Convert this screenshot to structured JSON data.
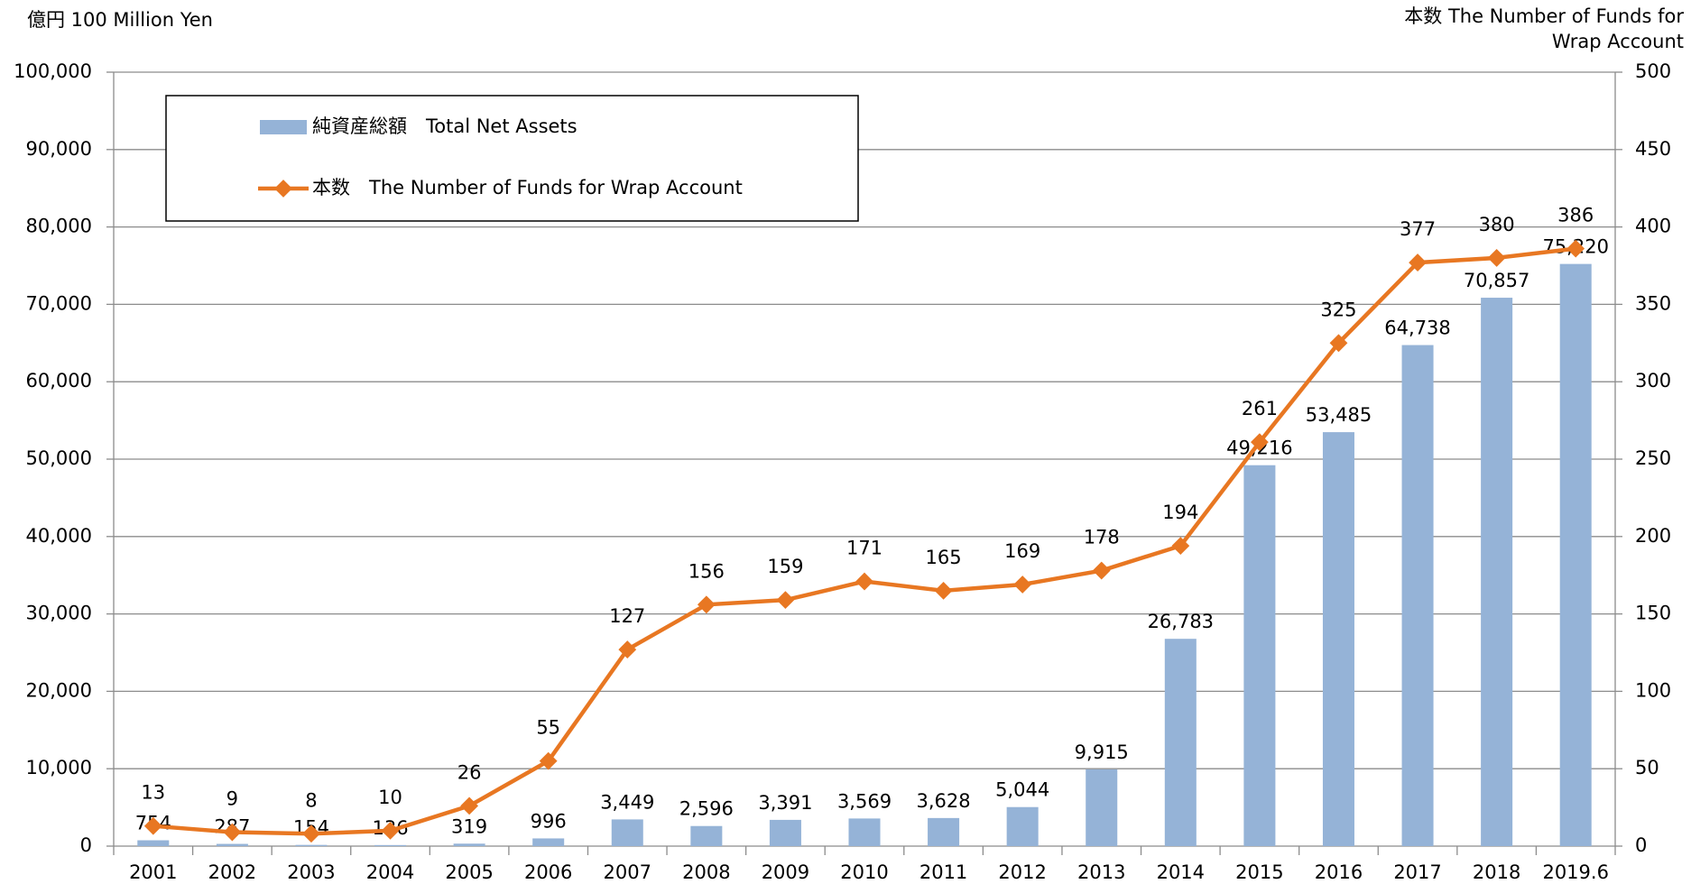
{
  "chart_data": {
    "type": "bar",
    "y_label": "億円 100 Million Yen",
    "y2_label": "本数 The Number of Funds for Wrap Account",
    "categories": [
      "2001",
      "2002",
      "2003",
      "2004",
      "2005",
      "2006",
      "2007",
      "2008",
      "2009",
      "2010",
      "2011",
      "2012",
      "2013",
      "2014",
      "2015",
      "2016",
      "2017",
      "2018",
      "2019.6"
    ],
    "series": [
      {
        "name": "純資産総額　Total Net Assets",
        "color": "#95b3d7",
        "values": [
          754,
          287,
          154,
          136,
          319,
          996,
          3449,
          2596,
          3391,
          3569,
          3628,
          5044,
          9915,
          26783,
          49216,
          53485,
          64738,
          70857,
          75220
        ],
        "value_labels": [
          "754",
          "287",
          "154",
          "136",
          "319",
          "996",
          "3,449",
          "2,596",
          "3,391",
          "3,569",
          "3,628",
          "5,044",
          "9,915",
          "26,783",
          "49,216",
          "53,485",
          "64,738",
          "70,857",
          "75,220"
        ]
      },
      {
        "name": "本数　The Number of Funds for Wrap Account",
        "color": "#e87722",
        "type": "line",
        "axis": "y2",
        "values": [
          13,
          9,
          8,
          10,
          26,
          55,
          127,
          156,
          159,
          171,
          165,
          169,
          178,
          194,
          261,
          325,
          377,
          380,
          386
        ]
      }
    ],
    "ylim": [
      0,
      100000
    ],
    "yticks": [
      0,
      {
        "value": 10000,
        "label": "10,000"
      },
      {
        "value": 20000,
        "label": "20,000"
      },
      {
        "value": 30000,
        "label": "30,000"
      },
      {
        "value": 40000,
        "label": "40,000"
      },
      {
        "value": 50000,
        "label": "50,000"
      },
      {
        "value": 60000,
        "label": "60,000"
      },
      {
        "value": 70000,
        "label": "70,000"
      },
      {
        "value": 80000,
        "label": "80,000"
      },
      {
        "value": 90000,
        "label": "90,000"
      },
      {
        "value": 100000,
        "label": "100,000"
      }
    ],
    "y2lim": [
      0,
      500
    ],
    "y2ticks": [
      0,
      50,
      100,
      150,
      200,
      250,
      300,
      350,
      400,
      450,
      500
    ],
    "grid": true,
    "legend": "top-left"
  }
}
